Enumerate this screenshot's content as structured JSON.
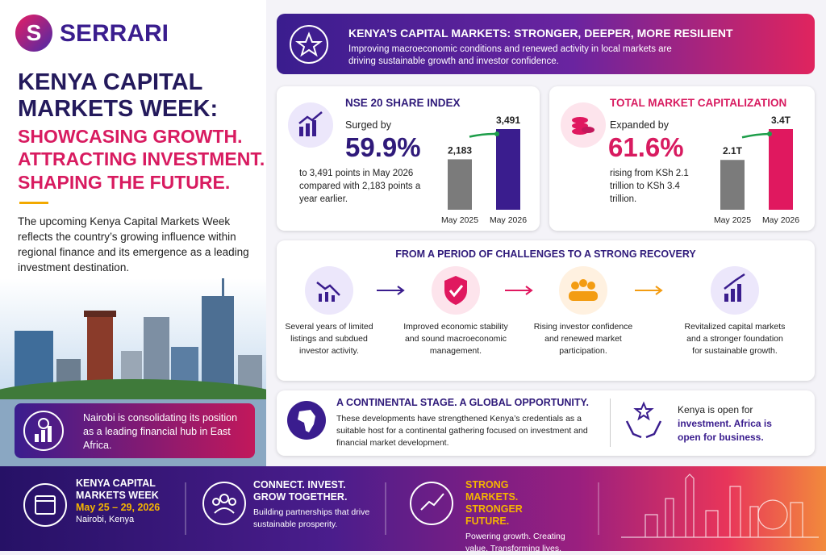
{
  "brand": "SERRARI",
  "hero": {
    "title": "KENYA CAPITAL MARKETS WEEK:",
    "tagline": [
      "SHOWCASING GROWTH.",
      "ATTRACTING INVESTMENT.",
      "SHAPING THE FUTURE."
    ],
    "intro": "The upcoming Kenya Capital Markets Week reflects the country’s growing influence within regional finance and its emergence as a leading investment destination.",
    "callout": "Nairobi is consolidating its position as a leading financial hub in East Africa."
  },
  "banner": {
    "title": "KENYA’S CAPITAL MARKETS: STRONGER, DEEPER, MORE RESILIENT",
    "text": "Improving macroeconomic conditions and renewed activity in local markets are driving sustainable growth and investor confidence."
  },
  "cards": [
    {
      "title": "NSE 20 SHARE INDEX",
      "lead": "Surged by",
      "figure": "59.9%",
      "text": "to 3,491 points in May 2026 compared with 2,183 points a year earlier.",
      "chart": {
        "type": "bar",
        "categories": [
          "May 2025",
          "May 2026"
        ],
        "values": [
          2183,
          3491
        ],
        "value_labels": [
          "2,183",
          "3,491"
        ],
        "colors": [
          "#7b7b7b",
          "#3a1d8e"
        ]
      }
    },
    {
      "title": "TOTAL MARKET CAPITALIZATION",
      "lead": "Expanded by",
      "figure": "61.6%",
      "text": "rising from KSh 2.1 trillion to KSh 3.4 trillion.",
      "chart": {
        "type": "bar",
        "categories": [
          "May 2025",
          "May 2026"
        ],
        "values": [
          2.1,
          3.4
        ],
        "value_labels": [
          "2.1T",
          "3.4T"
        ],
        "colors": [
          "#7b7b7b",
          "#e0185f"
        ]
      }
    }
  ],
  "recovery": {
    "title": "FROM A PERIOD OF CHALLENGES TO A STRONG RECOVERY",
    "steps": [
      "Several years of limited listings and subdued investor activity.",
      "Improved economic stability and sound macroeconomic management.",
      "Rising investor confidence and renewed market participation.",
      "Revitalized capital markets and a stronger foundation for sustainable growth."
    ]
  },
  "continental": {
    "title": "A CONTINENTAL STAGE. A GLOBAL OPPORTUNITY.",
    "text": "These developments have strengthened Kenya’s credentials as a suitable host for a continental gathering focused on investment and financial market development.",
    "aside": [
      "Kenya is open for",
      "investment. Africa is open for business."
    ]
  },
  "footer": [
    {
      "title": "KENYA CAPITAL MARKETS WEEK",
      "date": "May 25 – 29, 2026",
      "place": "Nairobi, Kenya"
    },
    {
      "title": "CONNECT. INVEST. GROW TOGETHER.",
      "text": "Building partnerships that drive sustainable prosperity."
    },
    {
      "title": "STRONG MARKETS. STRONGER FUTURE.",
      "text": "Powering growth. Creating value. Transforming lives."
    }
  ]
}
